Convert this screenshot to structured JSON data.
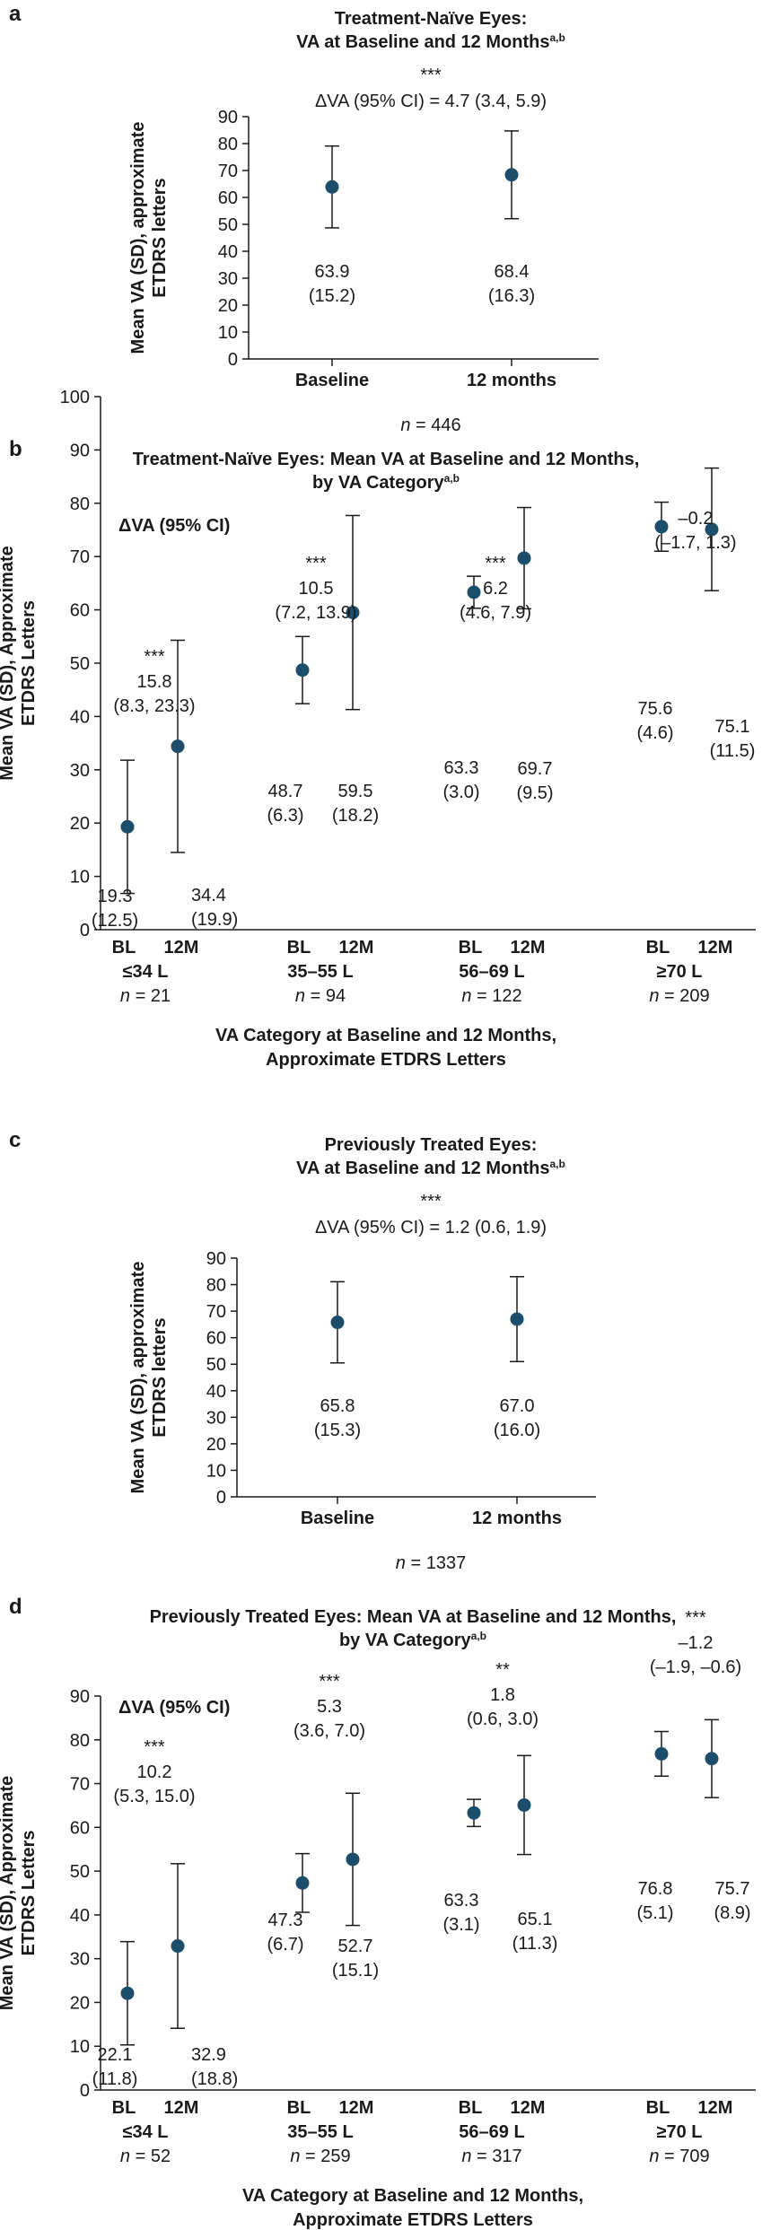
{
  "colors": {
    "marker": "#1c4e6b",
    "text": "#1a1a1a",
    "axis": "#1a1a1a"
  },
  "chart_data": [
    {
      "type": "scatter",
      "panel_label": "a",
      "title_line1": "Treatment-Naïve Eyes:",
      "title_line2": "VA at Baseline and 12 Months",
      "title_sup": "a,b",
      "ylabel_line1": "Mean VA (SD), approximate",
      "ylabel_line2": "ETDRS letters",
      "ylim": [
        0,
        90
      ],
      "yticks": [
        0,
        10,
        20,
        30,
        40,
        50,
        60,
        70,
        80,
        90
      ],
      "sig": "***",
      "delta": "ΔVA (95% CI) = 4.7 (3.4, 5.9)",
      "points": [
        {
          "x": "Baseline",
          "mean": 63.9,
          "sd": 15.2,
          "label_mean": "63.9",
          "label_sd": "(15.2)"
        },
        {
          "x": "12 months",
          "mean": 68.4,
          "sd": 16.3,
          "label_mean": "68.4",
          "label_sd": "(16.3)"
        }
      ],
      "n_text": "= 446"
    },
    {
      "type": "scatter",
      "panel_label": "b",
      "title_line1": "Treatment-Naïve Eyes: Mean VA at Baseline and 12 Months,",
      "title_line2": "by VA Category",
      "title_sup": "a,b",
      "ylabel_line1": "Mean VA (SD), Approximate",
      "ylabel_line2": "ETDRS Letters",
      "ylim": [
        0,
        100
      ],
      "yticks": [
        0,
        10,
        20,
        30,
        40,
        50,
        60,
        70,
        80,
        90,
        100
      ],
      "legend_label": "ΔVA (95% CI)",
      "xlabel_line1": "VA Category at Baseline and 12 Months,",
      "xlabel_line2": "Approximate ETDRS Letters",
      "tick_bl": "BL",
      "tick_12m": "12M",
      "groups": [
        {
          "category": "≤34 L",
          "n_text": "= 21",
          "sig": "***",
          "delta": "15.8",
          "ci": "(8.3, 23.3)",
          "bl": {
            "mean": 19.3,
            "sd": 12.5,
            "label_mean": "19.3",
            "label_sd": "(12.5)"
          },
          "m12": {
            "mean": 34.4,
            "sd": 19.9,
            "label_mean": "34.4",
            "label_sd": "(19.9)"
          }
        },
        {
          "category": "35–55 L",
          "n_text": "= 94",
          "sig": "***",
          "delta": "10.5",
          "ci": "(7.2, 13.9)",
          "bl": {
            "mean": 48.7,
            "sd": 6.3,
            "label_mean": "48.7",
            "label_sd": "(6.3)"
          },
          "m12": {
            "mean": 59.5,
            "sd": 18.2,
            "label_mean": "59.5",
            "label_sd": "(18.2)"
          }
        },
        {
          "category": "56–69 L",
          "n_text": "= 122",
          "sig": "***",
          "delta": "6.2",
          "ci": "(4.6, 7.9)",
          "bl": {
            "mean": 63.3,
            "sd": 3.0,
            "label_mean": "63.3",
            "label_sd": "(3.0)"
          },
          "m12": {
            "mean": 69.7,
            "sd": 9.5,
            "label_mean": "69.7",
            "label_sd": "(9.5)"
          }
        },
        {
          "category": "≥70 L",
          "n_text": "= 209",
          "sig": "",
          "delta": "–0.2",
          "ci": "(–1.7, 1.3)",
          "bl": {
            "mean": 75.6,
            "sd": 4.6,
            "label_mean": "75.6",
            "label_sd": "(4.6)"
          },
          "m12": {
            "mean": 75.1,
            "sd": 11.5,
            "label_mean": "75.1",
            "label_sd": "(11.5)"
          }
        }
      ]
    },
    {
      "type": "scatter",
      "panel_label": "c",
      "title_line1": "Previously Treated Eyes:",
      "title_line2": "VA at Baseline and 12 Months",
      "title_sup": "a,b",
      "ylabel_line1": "Mean VA (SD), approximate",
      "ylabel_line2": "ETDRS letters",
      "ylim": [
        0,
        90
      ],
      "yticks": [
        0,
        10,
        20,
        30,
        40,
        50,
        60,
        70,
        80,
        90
      ],
      "sig": "***",
      "delta": "ΔVA (95% CI) = 1.2 (0.6, 1.9)",
      "points": [
        {
          "x": "Baseline",
          "mean": 65.8,
          "sd": 15.3,
          "label_mean": "65.8",
          "label_sd": "(15.3)"
        },
        {
          "x": "12 months",
          "mean": 67.0,
          "sd": 16.0,
          "label_mean": "67.0",
          "label_sd": "(16.0)"
        }
      ],
      "n_text": "= 1337"
    },
    {
      "type": "scatter",
      "panel_label": "d",
      "title_line1": "Previously Treated Eyes: Mean VA at Baseline and 12 Months,",
      "title_line2": "by VA Category",
      "title_sup": "a,b",
      "ylabel_line1": "Mean VA (SD), Approximate",
      "ylabel_line2": "ETDRS Letters",
      "ylim": [
        0,
        90
      ],
      "yticks": [
        0,
        10,
        20,
        30,
        40,
        50,
        60,
        70,
        80,
        90
      ],
      "legend_label": "ΔVA (95% CI)",
      "xlabel_line1": "VA Category at Baseline and 12 Months,",
      "xlabel_line2": "Approximate ETDRS Letters",
      "tick_bl": "BL",
      "tick_12m": "12M",
      "groups": [
        {
          "category": "≤34 L",
          "n_text": "= 52",
          "sig": "***",
          "delta": "10.2",
          "ci": "(5.3, 15.0)",
          "bl": {
            "mean": 22.1,
            "sd": 11.8,
            "label_mean": "22.1",
            "label_sd": "(11.8)"
          },
          "m12": {
            "mean": 32.9,
            "sd": 18.8,
            "label_mean": "32.9",
            "label_sd": "(18.8)"
          }
        },
        {
          "category": "35–55 L",
          "n_text": "= 259",
          "sig": "***",
          "delta": "5.3",
          "ci": "(3.6, 7.0)",
          "bl": {
            "mean": 47.3,
            "sd": 6.7,
            "label_mean": "47.3",
            "label_sd": "(6.7)"
          },
          "m12": {
            "mean": 52.7,
            "sd": 15.1,
            "label_mean": "52.7",
            "label_sd": "(15.1)"
          }
        },
        {
          "category": "56–69 L",
          "n_text": "= 317",
          "sig": "**",
          "delta": "1.8",
          "ci": "(0.6, 3.0)",
          "bl": {
            "mean": 63.3,
            "sd": 3.1,
            "label_mean": "63.3",
            "label_sd": "(3.1)"
          },
          "m12": {
            "mean": 65.1,
            "sd": 11.3,
            "label_mean": "65.1",
            "label_sd": "(11.3)"
          }
        },
        {
          "category": "≥70 L",
          "n_text": "= 709",
          "sig": "***",
          "delta": "–1.2",
          "ci": "(–1.9, –0.6)",
          "bl": {
            "mean": 76.8,
            "sd": 5.1,
            "label_mean": "76.8",
            "label_sd": "(5.1)"
          },
          "m12": {
            "mean": 75.7,
            "sd": 8.9,
            "label_mean": "75.7",
            "label_sd": "(8.9)"
          }
        }
      ]
    }
  ]
}
